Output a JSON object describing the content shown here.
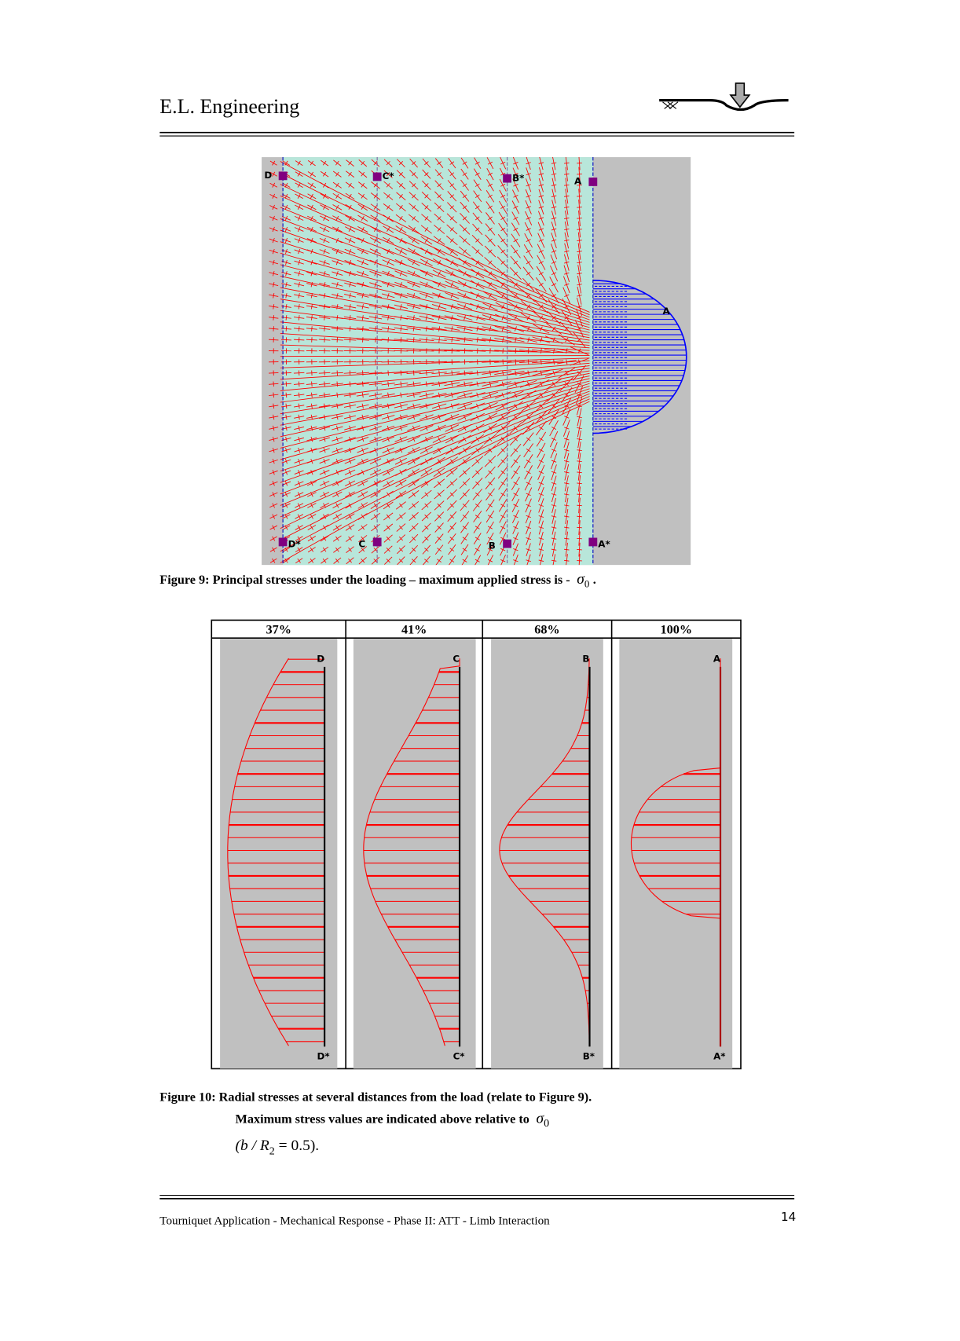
{
  "header": {
    "title": "E.L. Engineering"
  },
  "figure9": {
    "labels": {
      "top": [
        "D",
        "C*",
        "B*",
        "A"
      ],
      "bottom": [
        "D*",
        "C",
        "B",
        "A*"
      ],
      "load": "A"
    },
    "caption": {
      "text": "Figure 9: Principal stresses under the loading – maximum applied stress is -",
      "symbol": "σ",
      "subscript": "0",
      "end": "."
    }
  },
  "figure10": {
    "headers": [
      "37%",
      "41%",
      "68%",
      "100%"
    ],
    "top_labels": [
      "D",
      "C",
      "B",
      "A"
    ],
    "bottom_labels": [
      "D*",
      "C*",
      "B*",
      "A*"
    ],
    "caption": {
      "line1": "Figure 10: Radial stresses at several distances from the load (relate to Figure 9).",
      "line2": "Maximum stress values are indicated above relative to",
      "symbol": "σ",
      "subscript": "0",
      "line3_start": "(b / R",
      "line3_subscript": "2",
      "line3_end": " = 0.5)."
    }
  },
  "footer": {
    "text": "Tourniquet Application - Mechanical Response - Phase II: ATT - Limb Interaction",
    "page": "14"
  }
}
